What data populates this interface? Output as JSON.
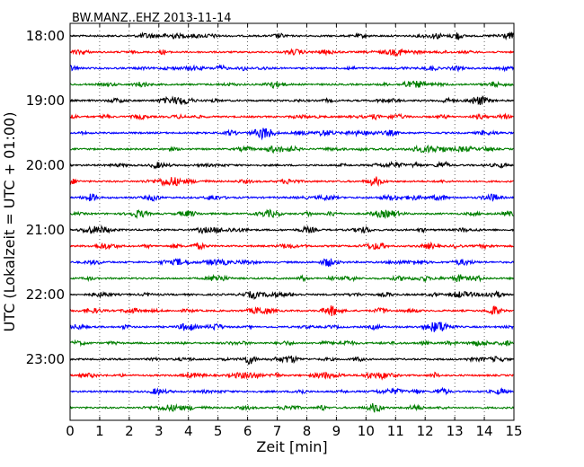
{
  "chart_data": {
    "type": "line",
    "title": "BW.MANZ..EHZ 2013-11-14",
    "xlabel": "Zeit  [min]",
    "ylabel": "UTC (Lokalzeit = UTC + 01:00)",
    "xlim": [
      0,
      15
    ],
    "x_ticks": [
      0,
      1,
      2,
      3,
      4,
      5,
      6,
      7,
      8,
      9,
      10,
      11,
      12,
      13,
      14,
      15
    ],
    "y_tick_labels": [
      "18:00",
      "19:00",
      "20:00",
      "21:00",
      "22:00",
      "23:00"
    ],
    "grid": "vertical dotted",
    "rows_per_hour": 4,
    "minutes_per_row": 15,
    "row_colors": [
      "#000000",
      "#ff0000",
      "#0000ff",
      "#007f00"
    ],
    "traces": [
      {
        "start": "18:00"
      },
      {
        "start": "18:15"
      },
      {
        "start": "18:30"
      },
      {
        "start": "18:45"
      },
      {
        "start": "19:00"
      },
      {
        "start": "19:15"
      },
      {
        "start": "19:30"
      },
      {
        "start": "19:45"
      },
      {
        "start": "20:00"
      },
      {
        "start": "20:15"
      },
      {
        "start": "20:30"
      },
      {
        "start": "20:45"
      },
      {
        "start": "21:00"
      },
      {
        "start": "21:15"
      },
      {
        "start": "21:30"
      },
      {
        "start": "21:45"
      },
      {
        "start": "22:00"
      },
      {
        "start": "22:15"
      },
      {
        "start": "22:30"
      },
      {
        "start": "22:45"
      },
      {
        "start": "23:00"
      },
      {
        "start": "23:15"
      },
      {
        "start": "23:30"
      },
      {
        "start": "23:45"
      }
    ]
  }
}
